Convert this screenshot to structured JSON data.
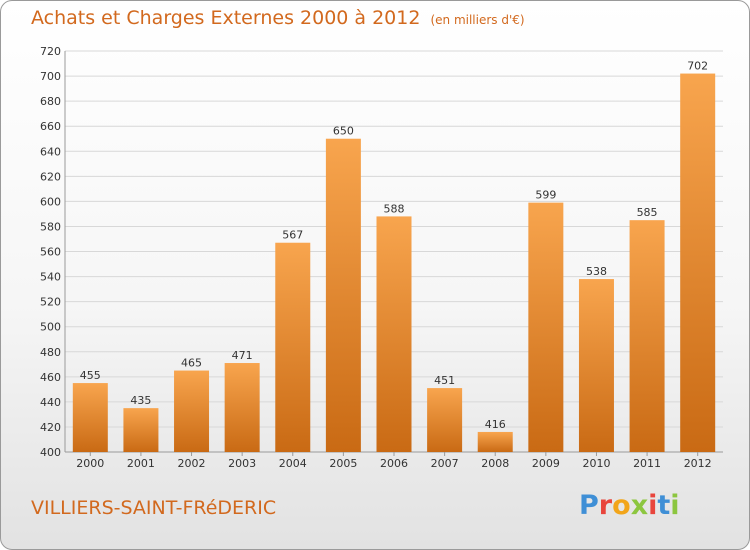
{
  "header": {
    "title": "Achats et Charges Externes 2000 à 2012",
    "subtitle": "(en milliers d'€)"
  },
  "footer": {
    "place": "VILLIERS-SAINT-FRéDERIC",
    "brand_letters": [
      {
        "char": "P",
        "color": "#3f8fd6"
      },
      {
        "char": "r",
        "color": "#e8453c"
      },
      {
        "char": "o",
        "color": "#f2a51a"
      },
      {
        "char": "x",
        "color": "#8cc63f"
      },
      {
        "char": "i",
        "color": "#e8453c"
      },
      {
        "char": "t",
        "color": "#3f8fd6"
      },
      {
        "char": "i",
        "color": "#8cc63f"
      }
    ]
  },
  "colors": {
    "bar_light": "#f8a54e",
    "bar_dark": "#c96a14",
    "grid": "#d8d8d8",
    "accent": "#d2691e"
  },
  "chart_data": {
    "type": "bar",
    "title": "Achats et Charges Externes 2000 à 2012",
    "subtitle": "(en milliers d'€)",
    "categories": [
      "2000",
      "2001",
      "2002",
      "2003",
      "2004",
      "2005",
      "2006",
      "2007",
      "2008",
      "2009",
      "2010",
      "2011",
      "2012"
    ],
    "values": [
      455,
      435,
      465,
      471,
      567,
      650,
      588,
      451,
      416,
      599,
      538,
      585,
      702
    ],
    "ylim": [
      400,
      720
    ],
    "yticks": [
      400,
      420,
      440,
      460,
      480,
      500,
      520,
      540,
      560,
      580,
      600,
      620,
      640,
      660,
      680,
      700,
      720
    ],
    "grid": true
  }
}
